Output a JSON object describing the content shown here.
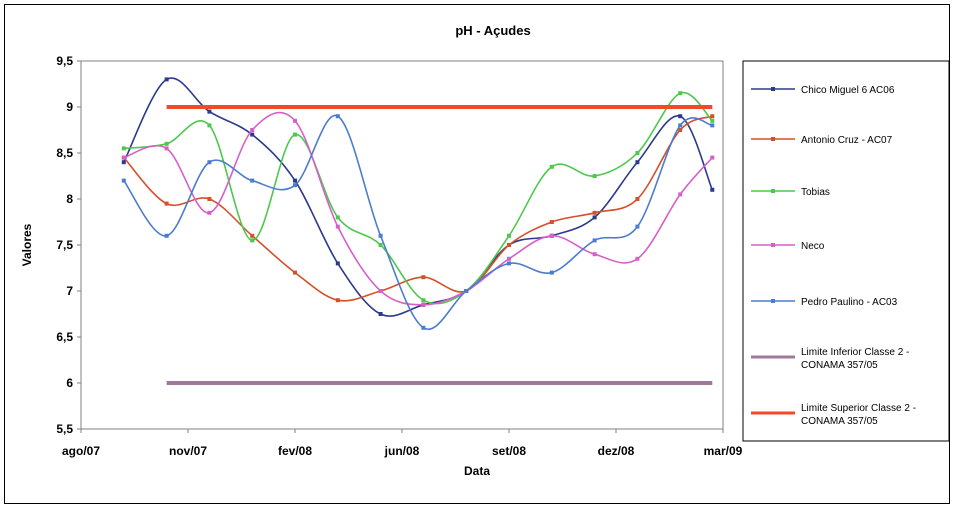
{
  "chart_data": {
    "type": "line",
    "title": "pH - Açudes",
    "xlabel": "Data",
    "ylabel": "Valores",
    "x_ticks": [
      "ago/07",
      "nov/07",
      "fev/08",
      "jun/08",
      "set/08",
      "dez/08",
      "mar/09"
    ],
    "y_ticks": [
      "5,5",
      "6",
      "6,5",
      "7",
      "7,5",
      "8",
      "8,5",
      "9",
      "9,5"
    ],
    "ylim": [
      5.5,
      9.5
    ],
    "grid": false,
    "legend_position": "right",
    "series": [
      {
        "name": "Chico Miguel 6 AC06",
        "color": "#2b3a8c",
        "points": [
          [
            0.4,
            8.4
          ],
          [
            0.8,
            9.3
          ],
          [
            1.2,
            8.95
          ],
          [
            1.6,
            8.7
          ],
          [
            2.0,
            8.2
          ],
          [
            2.4,
            7.3
          ],
          [
            2.8,
            6.75
          ],
          [
            3.2,
            6.85
          ],
          [
            3.6,
            7.0
          ],
          [
            4.0,
            7.5
          ],
          [
            4.4,
            7.6
          ],
          [
            4.8,
            7.8
          ],
          [
            5.2,
            8.4
          ],
          [
            5.6,
            8.9
          ],
          [
            5.9,
            8.1
          ]
        ]
      },
      {
        "name": "Antonio Cruz - AC07",
        "color": "#d4502a",
        "points": [
          [
            0.4,
            8.45
          ],
          [
            0.8,
            7.95
          ],
          [
            1.2,
            8.0
          ],
          [
            1.6,
            7.6
          ],
          [
            2.0,
            7.2
          ],
          [
            2.4,
            6.9
          ],
          [
            2.8,
            7.0
          ],
          [
            3.2,
            7.15
          ],
          [
            3.6,
            7.0
          ],
          [
            4.0,
            7.5
          ],
          [
            4.4,
            7.75
          ],
          [
            4.8,
            7.85
          ],
          [
            5.2,
            8.0
          ],
          [
            5.6,
            8.75
          ],
          [
            5.9,
            8.9
          ]
        ]
      },
      {
        "name": "Tobias",
        "color": "#4cc84c",
        "points": [
          [
            0.4,
            8.55
          ],
          [
            0.8,
            8.6
          ],
          [
            1.2,
            8.8
          ],
          [
            1.6,
            7.55
          ],
          [
            2.0,
            8.7
          ],
          [
            2.4,
            7.8
          ],
          [
            2.8,
            7.5
          ],
          [
            3.2,
            6.9
          ],
          [
            3.6,
            7.0
          ],
          [
            4.0,
            7.6
          ],
          [
            4.4,
            8.35
          ],
          [
            4.8,
            8.25
          ],
          [
            5.2,
            8.5
          ],
          [
            5.6,
            9.15
          ],
          [
            5.9,
            8.85
          ]
        ]
      },
      {
        "name": "Neco",
        "color": "#d660c8",
        "points": [
          [
            0.4,
            8.45
          ],
          [
            0.8,
            8.55
          ],
          [
            1.2,
            7.85
          ],
          [
            1.6,
            8.75
          ],
          [
            2.0,
            8.85
          ],
          [
            2.4,
            7.7
          ],
          [
            2.8,
            7.0
          ],
          [
            3.2,
            6.85
          ],
          [
            3.6,
            7.0
          ],
          [
            4.0,
            7.35
          ],
          [
            4.4,
            7.6
          ],
          [
            4.8,
            7.4
          ],
          [
            5.2,
            7.35
          ],
          [
            5.6,
            8.05
          ],
          [
            5.9,
            8.45
          ]
        ]
      },
      {
        "name": "Pedro Paulino - AC03",
        "color": "#4a7ccf",
        "points": [
          [
            0.4,
            8.2
          ],
          [
            0.8,
            7.6
          ],
          [
            1.2,
            8.4
          ],
          [
            1.6,
            8.2
          ],
          [
            2.0,
            8.15
          ],
          [
            2.4,
            8.9
          ],
          [
            2.8,
            7.6
          ],
          [
            3.2,
            6.6
          ],
          [
            3.6,
            7.0
          ],
          [
            4.0,
            7.3
          ],
          [
            4.4,
            7.2
          ],
          [
            4.8,
            7.55
          ],
          [
            5.2,
            7.7
          ],
          [
            5.6,
            8.8
          ],
          [
            5.9,
            8.8
          ]
        ]
      },
      {
        "name": "Limite Inferior Classe 2 - CONAMA 357/05",
        "color": "#a0789a",
        "points": [
          [
            0.8,
            6.0
          ],
          [
            5.9,
            6.0
          ]
        ]
      },
      {
        "name": "Limite Superior Classe 2 - CONAMA 357/05",
        "color": "#f04a2a",
        "points": [
          [
            0.8,
            9.0
          ],
          [
            5.9,
            9.0
          ]
        ]
      }
    ],
    "legend": [
      {
        "lines": [
          "Chico Miguel 6 AC06"
        ]
      },
      {
        "lines": [
          "Antonio Cruz - AC07"
        ]
      },
      {
        "lines": [
          "Tobias"
        ]
      },
      {
        "lines": [
          "Neco"
        ]
      },
      {
        "lines": [
          "Pedro Paulino - AC03"
        ]
      },
      {
        "lines": [
          "Limite Inferior Classe 2 -",
          "CONAMA 357/05"
        ]
      },
      {
        "lines": [
          "Limite Superior Classe 2 -",
          "CONAMA 357/05"
        ]
      }
    ]
  }
}
